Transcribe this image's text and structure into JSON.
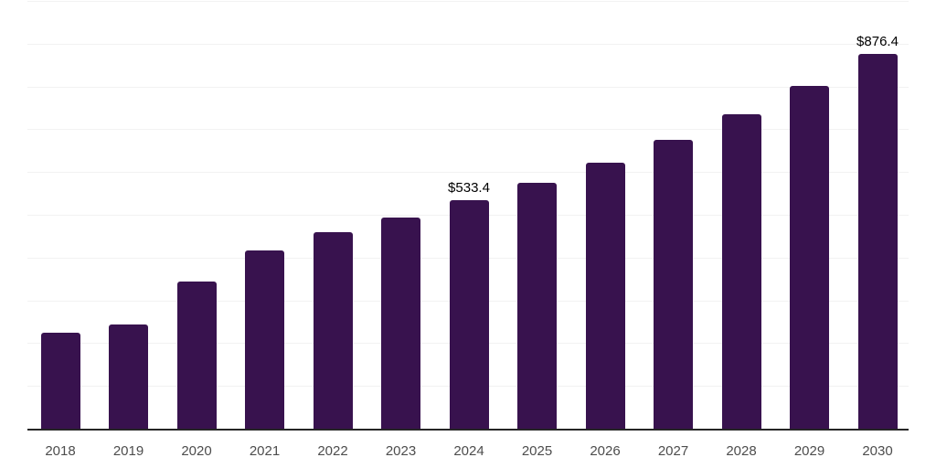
{
  "chart_data": {
    "type": "bar",
    "title": "",
    "xlabel": "",
    "ylabel": "",
    "categories": [
      "2018",
      "2019",
      "2020",
      "2021",
      "2022",
      "2023",
      "2024",
      "2025",
      "2026",
      "2027",
      "2028",
      "2029",
      "2030"
    ],
    "values": [
      225,
      243,
      343,
      417,
      460,
      494,
      533.4,
      575,
      622,
      675,
      735,
      801,
      876.4
    ],
    "value_labels": [
      {
        "category": "2024",
        "text": "$533.4"
      },
      {
        "category": "2030",
        "text": "$876.4"
      }
    ],
    "note": "only 2024 and 2030 carry on-chart data labels; remaining values estimated from bar heights against the 0-1000 gridline scale",
    "ylim": [
      0,
      1000
    ],
    "grid_step": 100,
    "grid": "horizontal only, very light, no y-axis tick labels",
    "legend": "none",
    "colors": {
      "bar": "#38124E",
      "axis_line": "#262626",
      "tick_label": "#4D4D4D",
      "value_label": "#000000",
      "gridline": "#F2F2F2",
      "background": "#FFFFFF"
    }
  }
}
